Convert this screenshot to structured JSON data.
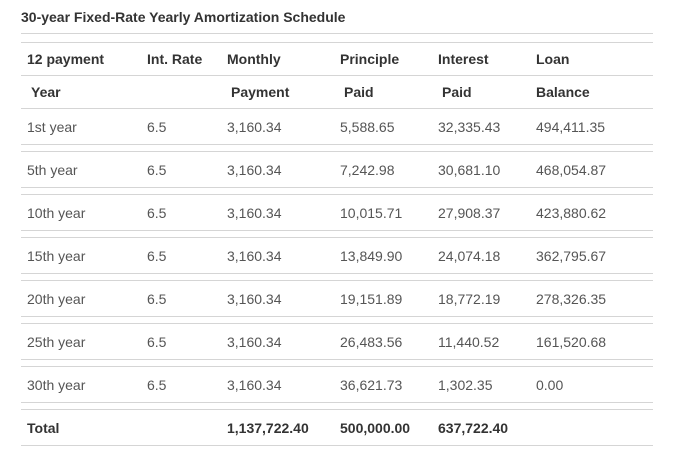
{
  "title": "30-year Fixed-Rate Yearly Amortization Schedule",
  "header_row_1": [
    "12 payment",
    "Int. Rate",
    "Monthly",
    "Principle",
    "Interest",
    "Loan"
  ],
  "header_row_2": [
    "Year",
    "",
    "Payment",
    "Paid",
    "Paid",
    "Balance"
  ],
  "rows": [
    [
      "1st year",
      "6.5",
      "3,160.34",
      "5,588.65",
      "32,335.43",
      "494,411.35"
    ],
    [
      "5th year",
      "6.5",
      "3,160.34",
      "7,242.98",
      "30,681.10",
      "468,054.87"
    ],
    [
      "10th year",
      "6.5",
      "3,160.34",
      "10,015.71",
      "27,908.37",
      "423,880.62"
    ],
    [
      "15th year",
      "6.5",
      "3,160.34",
      "13,849.90",
      "24,074.18",
      "362,795.67"
    ],
    [
      "20th year",
      "6.5",
      "3,160.34",
      "19,151.89",
      "18,772.19",
      "278,326.35"
    ],
    [
      "25th year",
      "6.5",
      "3,160.34",
      "26,483.56",
      "11,440.52",
      "161,520.68"
    ],
    [
      "30th year",
      "6.5",
      "3,160.34",
      "36,621.73",
      "1,302.35",
      "0.00"
    ]
  ],
  "total_row": [
    "Total",
    "",
    "1,137,722.40",
    "500,000.00",
    "637,722.40",
    ""
  ]
}
